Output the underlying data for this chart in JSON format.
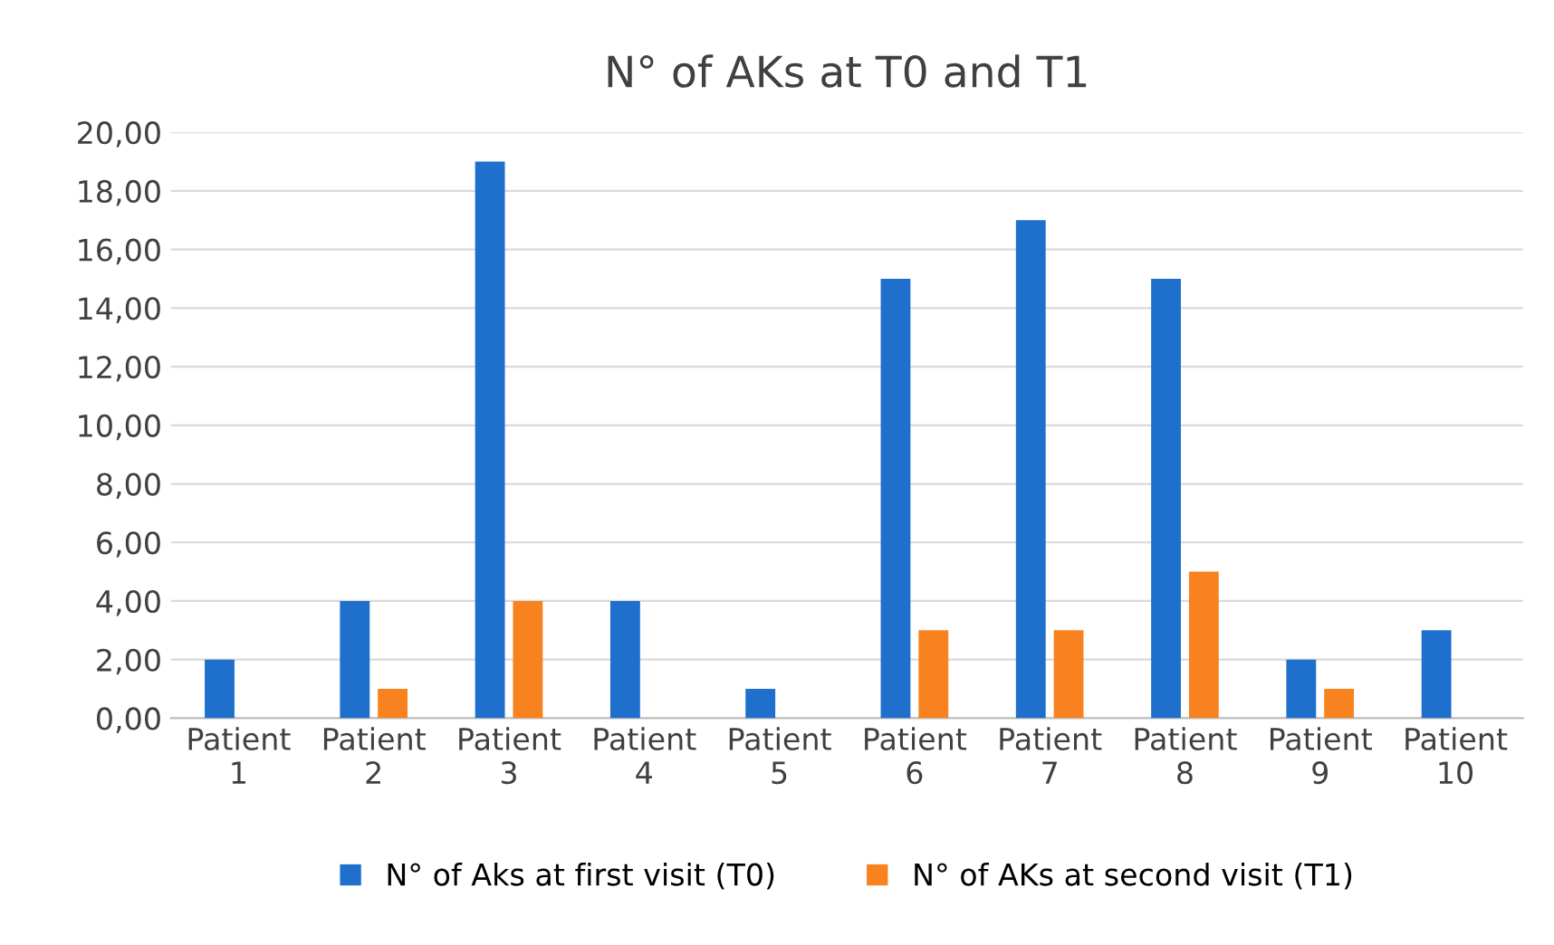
{
  "chart_data": {
    "type": "bar",
    "title": "N° of AKs at T0 and T1",
    "categories": [
      "Patient\n1",
      "Patient\n2",
      "Patient\n3",
      "Patient\n4",
      "Patient\n5",
      "Patient\n6",
      "Patient\n7",
      "Patient\n8",
      "Patient\n9",
      "Patient\n10"
    ],
    "series": [
      {
        "name": "N° of Aks at first visit (T0)",
        "color": "#1f6fcc",
        "values": [
          2,
          4,
          19,
          4,
          1,
          15,
          17,
          15,
          2,
          3
        ]
      },
      {
        "name": "N° of AKs at second visit (T1)",
        "color": "#f7821f",
        "values": [
          0,
          1,
          4,
          0,
          0,
          3,
          3,
          5,
          1,
          0
        ]
      }
    ],
    "ylim": [
      0,
      20
    ],
    "yticks": [
      {
        "value": 0,
        "label": "0,00"
      },
      {
        "value": 2,
        "label": "2,00"
      },
      {
        "value": 4,
        "label": "4,00"
      },
      {
        "value": 6,
        "label": "6,00"
      },
      {
        "value": 8,
        "label": "8,00"
      },
      {
        "value": 10,
        "label": "10,00"
      },
      {
        "value": 12,
        "label": "12,00"
      },
      {
        "value": 14,
        "label": "14,00"
      },
      {
        "value": 16,
        "label": "16,00"
      },
      {
        "value": 18,
        "label": "18,00"
      },
      {
        "value": 20,
        "label": "20,00"
      }
    ],
    "grid": "y",
    "legend": "bottom"
  }
}
